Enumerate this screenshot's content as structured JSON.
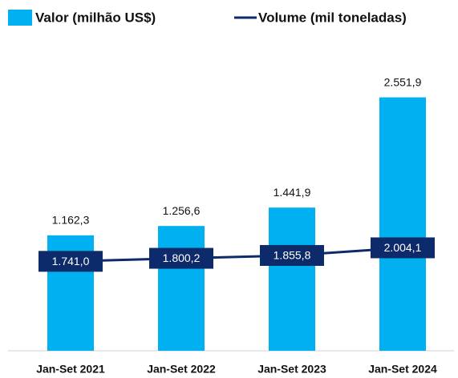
{
  "chart_data": {
    "type": "bar_line",
    "categories": [
      "Jan-Set 2021",
      "Jan-Set 2022",
      "Jan-Set 2023",
      "Jan-Set 2024"
    ],
    "series": [
      {
        "name": "Valor (milhão US$)",
        "type": "bar",
        "color": "#00b0f0",
        "values": [
          1162.3,
          1256.6,
          1441.9,
          2551.9
        ],
        "value_labels": [
          "1.162,3",
          "1.256,6",
          "1.441,9",
          "2.551,9"
        ]
      },
      {
        "name": "Volume (mil toneladas)",
        "type": "line",
        "axis": "y2",
        "color": "#0d2b6b",
        "values": [
          1741.0,
          1800.2,
          1855.8,
          2004.1
        ],
        "value_labels": [
          "1.741,0",
          "1.800,2",
          "1.855,8",
          "2.004,1"
        ]
      }
    ],
    "ylim": [
      0,
      3000
    ],
    "y2lim": [
      0,
      5800
    ],
    "legend": "top"
  }
}
